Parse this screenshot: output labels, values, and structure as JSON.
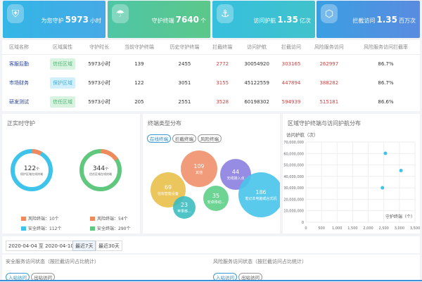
{
  "cards": [
    {
      "icon": "shield-icon",
      "label": "为您守护",
      "value": "5973",
      "unit": "小时",
      "color": "#3cb4e8"
    },
    {
      "icon": "umbrella-icon",
      "label": "守护终端",
      "value": "7640",
      "unit": "个",
      "color": "#55c79a"
    },
    {
      "icon": "anchor-icon",
      "label": "访问护航",
      "value": "1.35",
      "unit": "亿次",
      "color": "#3cc0d6"
    },
    {
      "icon": "block-icon",
      "label": "拦截访问",
      "value": "1.35",
      "unit": "百万次",
      "color": "#4a93e0"
    }
  ],
  "table": {
    "headers": [
      "区域名称",
      "区域属性",
      "守护时长",
      "当前守护终端",
      "历史守护终端",
      "拦截终端",
      "访问护航",
      "拦截访问",
      "风险服务访问",
      "风险服务访问拦截率"
    ],
    "rows": [
      [
        "客服后勤",
        "信任区域",
        "5973小时",
        "139",
        "2455",
        "2772",
        "30054920",
        "303165",
        "262997",
        "86.7%"
      ],
      [
        "市场财务",
        "保护区域",
        "5973小时",
        "122",
        "3051",
        "3155",
        "45122559",
        "447894",
        "388282",
        "86.7%"
      ],
      [
        "研发测试",
        "信任区域",
        "5973小时",
        "205",
        "2551",
        "3528",
        "60198302",
        "594939",
        "515181",
        "86.6%"
      ]
    ]
  },
  "realtime": {
    "title": "正实时守护",
    "donuts": [
      {
        "total": "122",
        "unit": "个",
        "caption": "保护区域在线终端",
        "risk_label": "风险终端：10个",
        "safe_label": "安全终端：112个",
        "risk": 10,
        "safe": 112,
        "color": "#3ec3ea"
      },
      {
        "total": "344",
        "unit": "个",
        "caption": "信任区域在线终端",
        "risk_label": "风险终端：54个",
        "safe_label": "安全终端：290个",
        "risk": 54,
        "safe": 290,
        "color": "#5fc77e"
      }
    ],
    "risk_color": "#f08a5d"
  },
  "types": {
    "title": "终端类型分布",
    "tabs": [
      "在线终端",
      "拦截终端",
      "风险终端"
    ],
    "active_tab": 0,
    "bubbles": [
      {
        "value": "69",
        "label": "信标智能设备",
        "color": "#e8c04a"
      },
      {
        "value": "109",
        "label": "其他",
        "color": "#f0906c"
      },
      {
        "value": "23",
        "label": "苹果移...",
        "color": "#3cbcc0"
      },
      {
        "value": "35",
        "label": "安卓移动...",
        "color": "#5ecf88"
      },
      {
        "value": "44",
        "label": "无线接入点",
        "color": "#8c7fe0"
      },
      {
        "value": "186",
        "label": "笔记本电脑或台式机",
        "color": "#48c4ea"
      }
    ]
  },
  "chart_data": {
    "type": "scatter",
    "title": "区域守护终端与访问护航分布",
    "ylabel": "访问护航（次）",
    "xlabel": "守护终端（个）",
    "xlim": [
      0,
      3500
    ],
    "ylim": [
      0,
      70000000
    ],
    "xticks": [
      "0",
      "500",
      "1,000",
      "1,500",
      "2,000",
      "2,500",
      "3,000",
      "3,500"
    ],
    "yticks": [
      "0",
      "10,000,000",
      "20,000,000",
      "30,000,000",
      "40,000,000",
      "50,000,000",
      "60,000,000",
      "70,000,000"
    ],
    "points": [
      {
        "x": 2455,
        "y": 30054920
      },
      {
        "x": 3051,
        "y": 45122559
      },
      {
        "x": 2551,
        "y": 60198302
      }
    ],
    "color": "#3ec3ea",
    "grid": true
  },
  "filter": {
    "date_range": "2020-04-04 至 2020-04-10",
    "buttons": [
      "最近7天",
      "最近30天"
    ],
    "active": 0
  },
  "bottom": [
    {
      "title": "安全服务访问状态（按拦截访问占比统计）",
      "tabs": [
        "入站访问",
        "出站访问"
      ]
    },
    {
      "title": "风险服务访问状态（按拦截访问占比统计）",
      "tabs": [
        "入站访问",
        "出站访问"
      ]
    }
  ]
}
